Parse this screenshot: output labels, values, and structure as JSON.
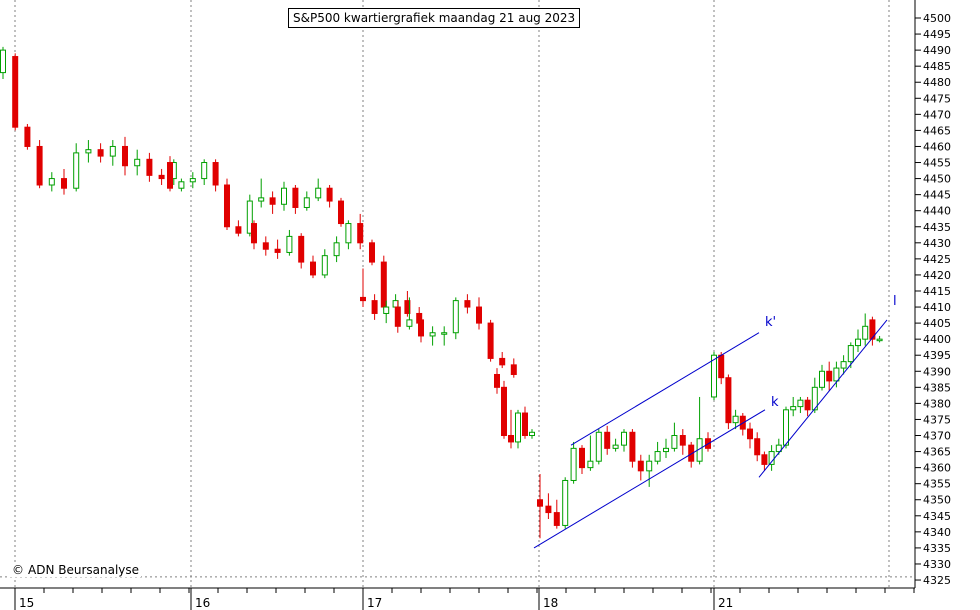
{
  "chart_data": {
    "type": "candlestick",
    "title": "S&P500 kwartiergrafiek maandag 21 aug 2023",
    "copyright": "ADN Beursanalyse",
    "copyright_symbol": "©",
    "ylim": [
      4325,
      4500
    ],
    "y_ticks": [
      4325,
      4330,
      4335,
      4340,
      4345,
      4350,
      4355,
      4360,
      4365,
      4370,
      4375,
      4380,
      4385,
      4390,
      4395,
      4400,
      4405,
      4410,
      4415,
      4420,
      4425,
      4430,
      4435,
      4440,
      4445,
      4450,
      4455,
      4460,
      4465,
      4470,
      4475,
      4480,
      4485,
      4490,
      4495,
      4500
    ],
    "x_day_labels": [
      "15",
      "16",
      "17",
      "18",
      "21"
    ],
    "grid": true,
    "colors": {
      "up": "#00a000",
      "down": "#e00000",
      "trendline": "#0000cc",
      "annotation": "#0000cc",
      "grid": "#808080"
    },
    "annotations": [
      "k'",
      "k",
      "l"
    ],
    "candles": [
      [
        4483,
        4490,
        4491,
        4481
      ],
      [
        4488,
        4466,
        4489,
        4465
      ],
      [
        4466,
        4460,
        4467,
        4459
      ],
      [
        4460,
        4448,
        4462,
        4447
      ],
      [
        4448,
        4450,
        4452,
        4446
      ],
      [
        4450,
        4447,
        4453,
        4445
      ],
      [
        4447,
        4458,
        4461,
        4446
      ],
      [
        4458,
        4459,
        4462,
        4455
      ],
      [
        4459,
        4457,
        4461,
        4455
      ],
      [
        4457,
        4460,
        4462,
        4454
      ],
      [
        4460,
        4454,
        4463,
        4451
      ],
      [
        4454,
        4456,
        4459,
        4451
      ],
      [
        4456,
        4451,
        4458,
        4449
      ],
      [
        4451,
        4450,
        4453,
        4448
      ],
      [
        4450,
        4455,
        4456,
        4448
      ],
      [
        4455,
        4447,
        4457,
        4446
      ],
      [
        4447,
        4449,
        4450,
        4446
      ],
      [
        4449,
        4450,
        4452,
        4447
      ],
      [
        4450,
        4455,
        4456,
        4448
      ],
      [
        4455,
        4448,
        4456,
        4446
      ],
      [
        4448,
        4435,
        4450,
        4434
      ],
      [
        4435,
        4433,
        4437,
        4432
      ],
      [
        4433,
        4443,
        4445,
        4432
      ],
      [
        4443,
        4444,
        4450,
        4441
      ],
      [
        4444,
        4442,
        4446,
        4439
      ],
      [
        4442,
        4447,
        4449,
        4440
      ],
      [
        4447,
        4441,
        4448,
        4439
      ],
      [
        4441,
        4444,
        4446,
        4440
      ],
      [
        4444,
        4447,
        4450,
        4443
      ],
      [
        4447,
        4443,
        4448,
        4441
      ],
      [
        4443,
        4436,
        4444,
        4435
      ],
      [
        4436,
        4430,
        4437,
        4428
      ],
      [
        4430,
        4428,
        4432,
        4426
      ],
      [
        4428,
        4427,
        4431,
        4425
      ],
      [
        4427,
        4432,
        4434,
        4426
      ],
      [
        4432,
        4424,
        4433,
        4422
      ],
      [
        4424,
        4420,
        4426,
        4419
      ],
      [
        4420,
        4426,
        4428,
        4419
      ],
      [
        4426,
        4430,
        4432,
        4424
      ],
      [
        4430,
        4436,
        4437,
        4428
      ],
      [
        4436,
        4430,
        4439,
        4428
      ],
      [
        4430,
        4424,
        4431,
        4423
      ],
      [
        4424,
        4410,
        4426,
        4409
      ],
      [
        4410,
        4412,
        4414,
        4408
      ],
      [
        4412,
        4408,
        4415,
        4407
      ],
      [
        4408,
        4405,
        4410,
        4404
      ],
      [
        4413,
        4412,
        4422,
        4410
      ],
      [
        4412,
        4408,
        4414,
        4406
      ],
      [
        4408,
        4410,
        4412,
        4405
      ],
      [
        4410,
        4404,
        4412,
        4402
      ],
      [
        4404,
        4406,
        4413,
        4403
      ],
      [
        4406,
        4401,
        4408,
        4399
      ],
      [
        4401,
        4402,
        4404,
        4398
      ],
      [
        4402,
        4402,
        4404,
        4398
      ],
      [
        4402,
        4412,
        4413,
        4400
      ],
      [
        4412,
        4410,
        4414,
        4408
      ],
      [
        4410,
        4405,
        4413,
        4403
      ],
      [
        4405,
        4394,
        4406,
        4393
      ],
      [
        4394,
        4392,
        4396,
        4391
      ],
      [
        4392,
        4389,
        4394,
        4388
      ],
      [
        4389,
        4385,
        4391,
        4383
      ],
      [
        4385,
        4370,
        4387,
        4369
      ],
      [
        4370,
        4368,
        4378,
        4366
      ],
      [
        4368,
        4377,
        4378,
        4366
      ],
      [
        4377,
        4370,
        4379,
        4369
      ],
      [
        4370,
        4371,
        4372,
        4369
      ],
      [
        4350,
        4348,
        4358,
        4338
      ],
      [
        4348,
        4346,
        4352,
        4344
      ],
      [
        4346,
        4342,
        4350,
        4341
      ],
      [
        4342,
        4356,
        4357,
        4341
      ],
      [
        4356,
        4366,
        4368,
        4355
      ],
      [
        4366,
        4360,
        4367,
        4358
      ],
      [
        4360,
        4362,
        4370,
        4359
      ],
      [
        4362,
        4371,
        4372,
        4361
      ],
      [
        4371,
        4366,
        4373,
        4364
      ],
      [
        4366,
        4367,
        4369,
        4365
      ],
      [
        4367,
        4371,
        4372,
        4365
      ],
      [
        4371,
        4362,
        4372,
        4360
      ],
      [
        4362,
        4359,
        4364,
        4356
      ],
      [
        4359,
        4362,
        4364,
        4354
      ],
      [
        4362,
        4365,
        4368,
        4361
      ],
      [
        4365,
        4366,
        4369,
        4363
      ],
      [
        4366,
        4370,
        4374,
        4365
      ],
      [
        4370,
        4367,
        4372,
        4364
      ],
      [
        4367,
        4362,
        4368,
        4360
      ],
      [
        4362,
        4369,
        4382,
        4361
      ],
      [
        4369,
        4366,
        4371,
        4365
      ],
      [
        4382,
        4395,
        4396,
        4381
      ],
      [
        4395,
        4388,
        4396,
        4386
      ],
      [
        4388,
        4374,
        4389,
        4372
      ],
      [
        4374,
        4376,
        4378,
        4372
      ],
      [
        4376,
        4372,
        4377,
        4370
      ],
      [
        4372,
        4369,
        4374,
        4366
      ],
      [
        4369,
        4364,
        4371,
        4362
      ],
      [
        4364,
        4361,
        4365,
        4359
      ],
      [
        4361,
        4365,
        4367,
        4359
      ],
      [
        4365,
        4367,
        4369,
        4364
      ],
      [
        4367,
        4378,
        4379,
        4366
      ],
      [
        4378,
        4379,
        4382,
        4376
      ],
      [
        4379,
        4381,
        4382,
        4377
      ],
      [
        4381,
        4378,
        4382,
        4376
      ],
      [
        4378,
        4385,
        4388,
        4377
      ],
      [
        4385,
        4390,
        4392,
        4384
      ],
      [
        4390,
        4387,
        4393,
        4384
      ],
      [
        4387,
        4391,
        4393,
        4385
      ],
      [
        4391,
        4393,
        4395,
        4389
      ],
      [
        4393,
        4398,
        4399,
        4391
      ],
      [
        4398,
        4400,
        4403,
        4396
      ],
      [
        4400,
        4404,
        4408,
        4398
      ],
      [
        4406,
        4400,
        4407,
        4398
      ],
      [
        4400,
        4400,
        4401,
        4399
      ]
    ]
  }
}
